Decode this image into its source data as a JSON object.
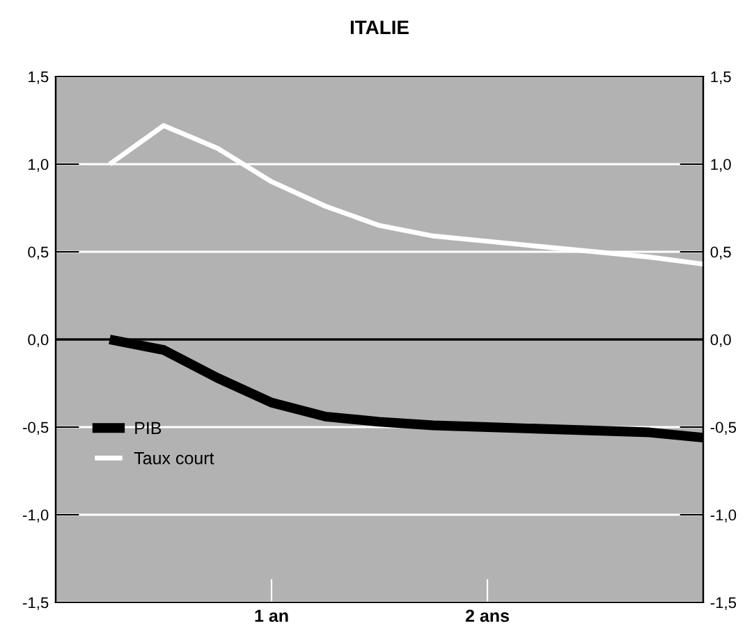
{
  "chart_data": {
    "type": "line",
    "title": "ITALIE",
    "categories": [
      null,
      null,
      null,
      null,
      "1 an",
      null,
      null,
      null,
      "2 ans",
      null,
      null,
      null,
      null
    ],
    "series": [
      {
        "name": "PIB",
        "color": "#000000",
        "values": [
          null,
          0.0,
          -0.06,
          -0.22,
          -0.36,
          -0.44,
          -0.47,
          -0.49,
          -0.5,
          -0.51,
          -0.52,
          -0.53,
          -0.56
        ]
      },
      {
        "name": "Taux court",
        "color": "#ffffff",
        "values": [
          null,
          1.0,
          1.22,
          1.09,
          0.9,
          0.76,
          0.65,
          0.59,
          0.56,
          0.53,
          0.5,
          0.47,
          0.43
        ]
      }
    ],
    "ylim": [
      -1.5,
      1.5
    ],
    "yticks": [
      {
        "value": -1.5,
        "label": "-1,5"
      },
      {
        "value": -1.0,
        "label": "-1,0"
      },
      {
        "value": -0.5,
        "label": "-0,5"
      },
      {
        "value": 0,
        "label": "0,0"
      },
      {
        "value": 0.5,
        "label": "0,5"
      },
      {
        "value": 1.0,
        "label": "1,0"
      },
      {
        "value": 1.5,
        "label": "1,5"
      }
    ],
    "y2lim": [
      -1.5,
      1.5
    ],
    "y2ticks": [
      {
        "value": -1.5,
        "label": "-1,5"
      },
      {
        "value": -1.0,
        "label": "-1,0"
      },
      {
        "value": -0.5,
        "label": "-0,5"
      },
      {
        "value": 0,
        "label": "0,0"
      },
      {
        "value": 0.5,
        "label": "0,5"
      },
      {
        "value": 1.0,
        "label": "1,0"
      },
      {
        "value": 1.5,
        "label": "1,5"
      }
    ],
    "ref_lines": [
      {
        "axis": "y",
        "value": 0,
        "color": "#000000"
      }
    ],
    "grid": "y",
    "legend": "left",
    "line_style": "solid",
    "marker": "none"
  }
}
